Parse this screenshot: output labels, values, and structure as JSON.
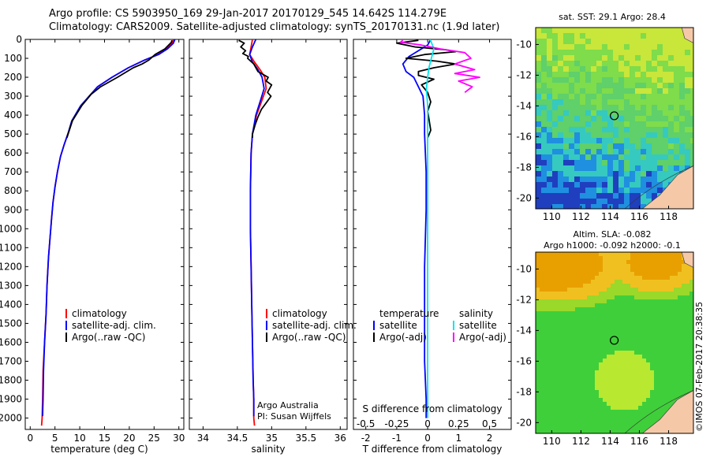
{
  "header": {
    "line1": "Argo profile: CS 5903950_169 29-Jan-2017 20170129_545 14.642S 114.279E",
    "line2": "Climatology: CARS2009. Satellite-adjusted climatology: synTS_20170131.nc (1.9d later)"
  },
  "footer_stamp": "©IMOS 07-Feb-2017 20:38:35",
  "colors": {
    "climatology": "#ff0000",
    "satellite": "#0000ff",
    "argo": "#000000",
    "satellite_salinity": "#00e5ee",
    "argo_adj_salinity": "#ff00ff"
  },
  "chart_data": [
    {
      "type": "line",
      "id": "temperature",
      "xlabel": "temperature (deg C)",
      "ylabel": "",
      "xlim": [
        -1,
        31
      ],
      "ylim": [
        2060,
        0
      ],
      "xticks": [
        0,
        5,
        10,
        15,
        20,
        25,
        30
      ],
      "yticks": [
        0,
        100,
        200,
        300,
        400,
        500,
        600,
        700,
        800,
        900,
        1000,
        1100,
        1200,
        1300,
        1400,
        1500,
        1600,
        1700,
        1800,
        1900,
        2000
      ],
      "legend": [
        "climatology",
        "satellite-adj. clim.",
        "Argo(..raw -QC)"
      ],
      "legend_position": "lower-center",
      "series": [
        {
          "name": "climatology",
          "color": "#ff0000",
          "x": [
            28.9,
            28.7,
            27.5,
            25.8,
            23.0,
            19.8,
            16.5,
            13.6,
            11.9,
            10.3,
            8.5,
            7.6,
            6.8,
            6.1,
            5.5,
            5.0,
            4.6,
            4.3,
            4.0,
            3.7,
            3.4,
            3.2,
            2.9,
            2.6,
            2.5,
            2.4,
            2.3
          ],
          "y": [
            0,
            20,
            50,
            80,
            110,
            150,
            200,
            250,
            300,
            350,
            430,
            500,
            560,
            620,
            700,
            780,
            860,
            950,
            1050,
            1150,
            1300,
            1450,
            1600,
            1750,
            1900,
            2000,
            2040
          ]
        },
        {
          "name": "satellite-adj. clim.",
          "color": "#0000ff",
          "x": [
            29.2,
            28.9,
            27.7,
            25.9,
            23.0,
            19.8,
            16.5,
            13.6,
            11.9,
            10.2,
            8.4,
            7.6,
            6.8,
            6.1,
            5.5,
            5.0,
            4.6,
            4.3,
            4.0,
            3.7,
            3.4,
            3.2,
            2.9,
            2.7,
            2.6,
            2.5
          ],
          "y": [
            0,
            20,
            50,
            80,
            110,
            150,
            200,
            250,
            300,
            350,
            430,
            500,
            560,
            620,
            700,
            780,
            860,
            950,
            1050,
            1150,
            1300,
            1450,
            1600,
            1750,
            1900,
            1990
          ]
        },
        {
          "name": "Argo(..raw -QC)",
          "color": "#000000",
          "x": [
            28.6,
            28.5,
            27.2,
            25.2,
            23.9,
            22.6,
            20.8,
            17.6,
            14.2,
            12.3,
            10.4,
            8.5,
            7.4
          ],
          "y": [
            5,
            15,
            50,
            80,
            110,
            130,
            150,
            200,
            250,
            290,
            350,
            430,
            520
          ]
        }
      ]
    },
    {
      "type": "line",
      "id": "salinity",
      "xlabel": "salinity",
      "xlim": [
        33.8,
        36.1
      ],
      "ylim": [
        2060,
        0
      ],
      "xticks": [
        34,
        34.5,
        35,
        35.5,
        36
      ],
      "xticklabels": [
        "34",
        "34.5",
        "35",
        "35.5",
        "36"
      ],
      "legend": [
        "climatology",
        "satellite-adj. clim.",
        "Argo(..raw -QC)"
      ],
      "legend_position": "lower-right",
      "annotations": [
        "Argo Australia",
        "PI: Susan Wijffels"
      ],
      "series": [
        {
          "name": "climatology",
          "color": "#ff0000",
          "x": [
            34.72,
            34.7,
            34.68,
            34.75,
            34.83,
            34.9,
            34.92,
            34.86,
            34.78,
            34.72,
            34.7,
            34.69,
            34.69,
            34.7,
            34.71,
            34.72,
            34.73,
            34.74,
            34.74,
            34.75
          ],
          "y": [
            0,
            40,
            80,
            120,
            160,
            200,
            260,
            320,
            400,
            500,
            600,
            800,
            1000,
            1200,
            1400,
            1600,
            1800,
            1900,
            2000,
            2040
          ]
        },
        {
          "name": "satellite-adj. clim.",
          "color": "#0000ff",
          "x": [
            34.77,
            34.72,
            34.68,
            34.72,
            34.8,
            34.86,
            34.89,
            34.84,
            34.77,
            34.72,
            34.7,
            34.69,
            34.69,
            34.7,
            34.71,
            34.72,
            34.73,
            34.74,
            34.74
          ],
          "y": [
            0,
            40,
            80,
            120,
            160,
            200,
            260,
            320,
            400,
            500,
            600,
            800,
            1000,
            1200,
            1400,
            1600,
            1800,
            1900,
            1990
          ]
        },
        {
          "name": "Argo(..raw -QC)",
          "color": "#000000",
          "x": [
            34.52,
            34.6,
            34.55,
            34.62,
            34.58,
            34.66,
            34.65,
            34.74,
            34.8,
            34.95,
            34.92,
            35.0,
            34.97,
            34.94,
            34.99,
            34.93,
            34.85,
            34.8,
            34.76,
            34.72,
            34.72
          ],
          "y": [
            5,
            20,
            40,
            60,
            75,
            90,
            100,
            130,
            170,
            200,
            220,
            240,
            260,
            280,
            300,
            330,
            370,
            410,
            450,
            500,
            520
          ]
        }
      ]
    },
    {
      "type": "line",
      "id": "difference",
      "xlabel": "T difference from climatology",
      "xlabel_top": "S difference from climatology",
      "xlim": [
        -2.4,
        2.7
      ],
      "ylim": [
        2060,
        0
      ],
      "xticks": [
        -2,
        -1,
        0,
        1,
        2
      ],
      "xticklabels": [
        "-2",
        "-1",
        "0",
        "1",
        "2"
      ],
      "sticks": [
        -0.5,
        -0.25,
        0,
        0.25,
        0.5
      ],
      "sticklabels": [
        "-0.5",
        "-0.25",
        "0",
        "0.25",
        "0.5"
      ],
      "legend_temperature_title": "temperature",
      "legend_salinity_title": "salinity",
      "legend": [
        "satellite",
        "Argo(-adj)",
        "satellite",
        "Argo(-adj)"
      ],
      "legend_position": "lower-center",
      "series": [
        {
          "name": "temperature satellite",
          "color": "#0000ff",
          "x": [
            0.1,
            0.0,
            -0.3,
            -0.6,
            -0.8,
            -0.7,
            -0.45,
            -0.3,
            -0.15,
            -0.1,
            -0.1,
            -0.05,
            -0.05,
            -0.1,
            -0.1,
            -0.1,
            -0.05,
            -0.05
          ],
          "y": [
            0,
            30,
            60,
            90,
            130,
            170,
            200,
            250,
            300,
            400,
            500,
            700,
            900,
            1200,
            1500,
            1700,
            1900,
            2000
          ]
        },
        {
          "name": "temperature Argo(-adj)",
          "color": "#000000",
          "x": [
            -0.3,
            -1.0,
            -0.4,
            0.6,
            0.9,
            -0.1,
            -0.7,
            0.3,
            0.9,
            0.2,
            -0.3,
            -0.3,
            0.2,
            -0.2,
            0.0,
            0.1,
            0.0,
            0.05,
            0.1,
            0.0
          ],
          "y": [
            5,
            20,
            40,
            55,
            65,
            80,
            100,
            115,
            130,
            150,
            170,
            190,
            210,
            240,
            280,
            330,
            380,
            430,
            480,
            520
          ]
        },
        {
          "name": "salinity satellite",
          "color": "#00e5ee",
          "x": [
            0.02,
            0.05,
            0.03,
            0.01,
            0.0,
            -0.01,
            0.0,
            0.0,
            0.0,
            0.0,
            0.0,
            0.0,
            0.0,
            0.0
          ],
          "y": [
            0,
            50,
            100,
            150,
            200,
            260,
            350,
            500,
            800,
            1100,
            1400,
            1700,
            1900,
            2000
          ]
        },
        {
          "name": "salinity Argo(-adj)",
          "color": "#ff00ff",
          "x": [
            -0.2,
            -0.22,
            -0.05,
            0.1,
            0.3,
            0.35,
            0.22,
            0.38,
            0.22,
            0.42,
            0.25,
            0.36,
            0.3
          ],
          "y": [
            5,
            15,
            30,
            50,
            70,
            100,
            130,
            160,
            180,
            200,
            220,
            250,
            280
          ]
        }
      ]
    },
    {
      "type": "heatmap",
      "id": "sst_map",
      "title": "sat. SST: 29.1  Argo: 28.4",
      "xticks": [
        110,
        112,
        114,
        116,
        118
      ],
      "yticks": [
        -10,
        -12,
        -14,
        -16,
        -18,
        -20
      ],
      "xlim": [
        108.9,
        119.7
      ],
      "ylim": [
        -20.7,
        -8.9
      ],
      "marker": {
        "lon": 114.279,
        "lat": -14.642
      }
    },
    {
      "type": "heatmap",
      "id": "sla_map",
      "title_line1": "Altim. SLA: -0.082",
      "title_line2": "Argo h1000: -0.092 h2000: -0.1",
      "xticks": [
        110,
        112,
        114,
        116,
        118
      ],
      "yticks": [
        -10,
        -12,
        -14,
        -16,
        -18,
        -20
      ],
      "xlim": [
        108.9,
        119.7
      ],
      "ylim": [
        -20.7,
        -8.9
      ],
      "marker": {
        "lon": 114.279,
        "lat": -14.642
      }
    }
  ]
}
